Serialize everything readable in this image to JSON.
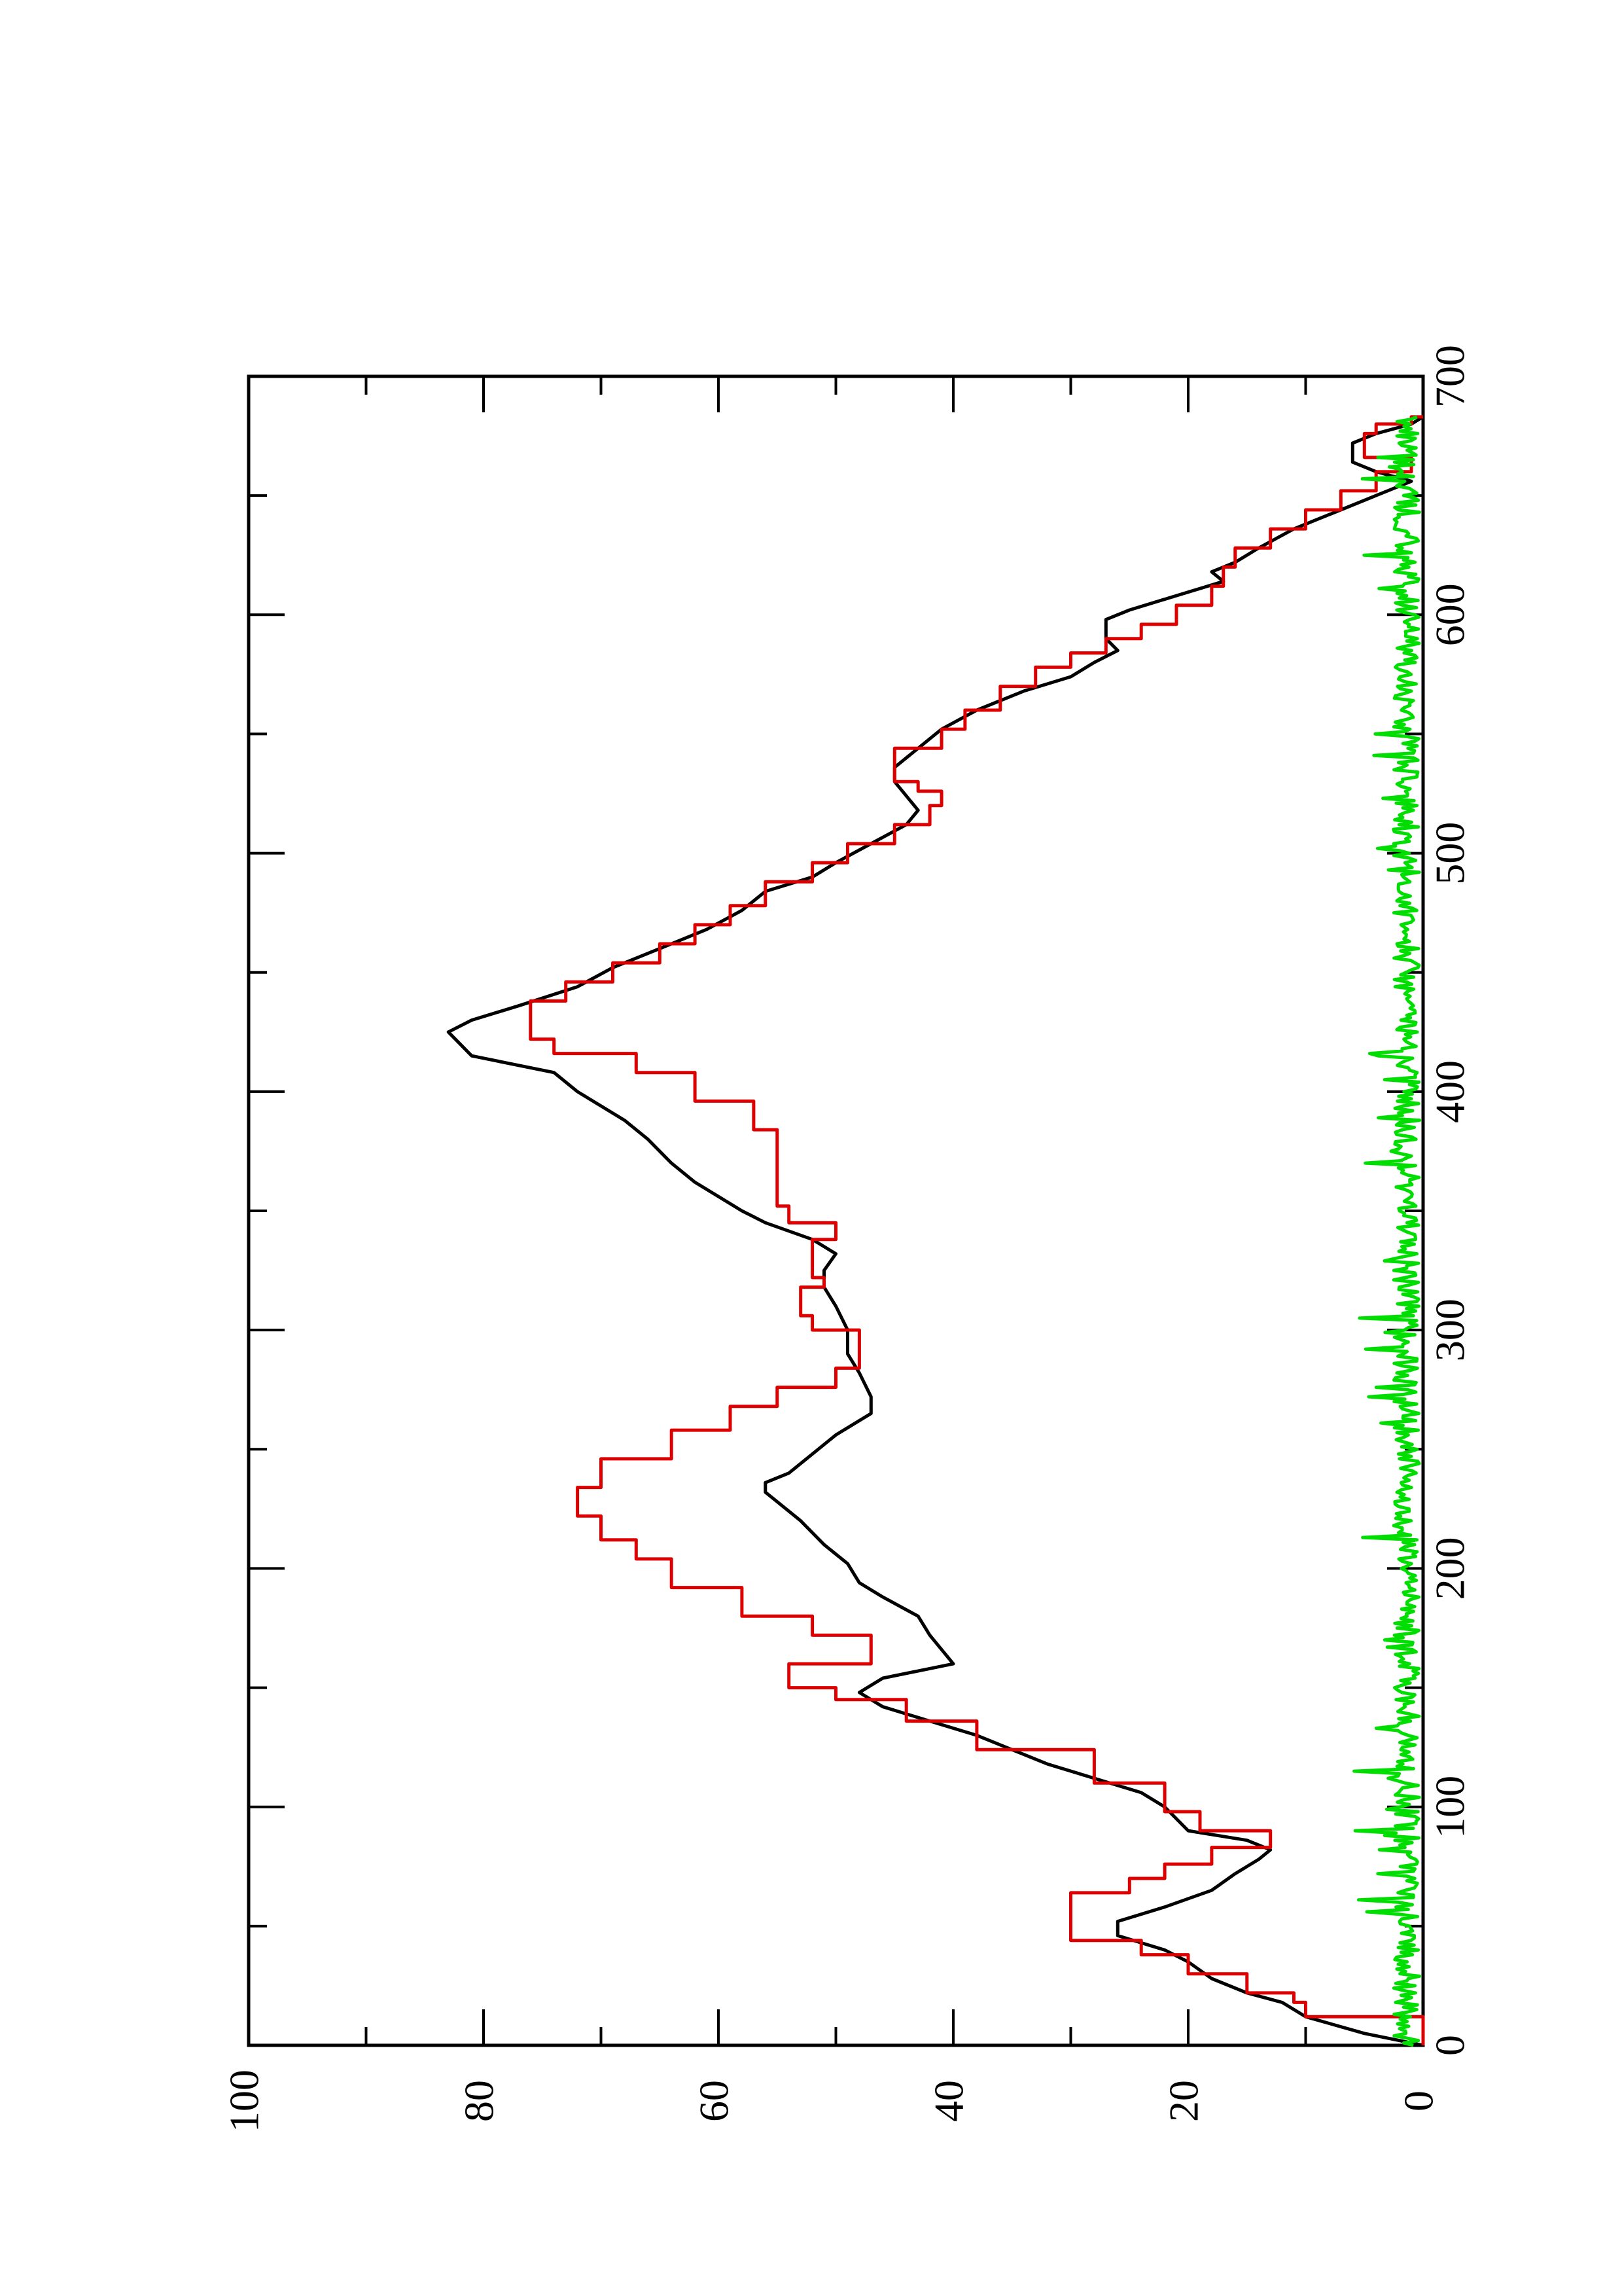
{
  "chart_data": {
    "type": "line",
    "orientation": "rotated-90-counterclockwise",
    "title": "",
    "xlabel": "",
    "ylabel": "",
    "xlim": [
      0,
      700
    ],
    "ylim": [
      0,
      100
    ],
    "x_ticks": [
      0,
      100,
      200,
      300,
      400,
      500,
      600,
      700
    ],
    "x_tick_labels": [
      "0",
      "100",
      "200",
      "300",
      "400",
      "500",
      "600",
      "700"
    ],
    "x_minor_ticks": [
      50,
      150,
      250,
      350,
      450,
      550,
      650
    ],
    "y_ticks": [
      0,
      20,
      40,
      60,
      80,
      100
    ],
    "y_tick_labels": [
      "0",
      "20",
      "40",
      "60",
      "80",
      "100"
    ],
    "y_minor_ticks": [
      10,
      30,
      50,
      70,
      90
    ],
    "grid": false,
    "legend": "none",
    "series": [
      {
        "color": "#000000",
        "style": "smooth",
        "points": [
          [
            0,
            0
          ],
          [
            5,
            5
          ],
          [
            12,
            10
          ],
          [
            18,
            12
          ],
          [
            22,
            15
          ],
          [
            28,
            18
          ],
          [
            35,
            20
          ],
          [
            40,
            22
          ],
          [
            46,
            26
          ],
          [
            52,
            26
          ],
          [
            58,
            22
          ],
          [
            65,
            18
          ],
          [
            72,
            16
          ],
          [
            78,
            14
          ],
          [
            82,
            13
          ],
          [
            86,
            15
          ],
          [
            90,
            20
          ],
          [
            95,
            21
          ],
          [
            100,
            22
          ],
          [
            106,
            24
          ],
          [
            112,
            28
          ],
          [
            118,
            32
          ],
          [
            124,
            35
          ],
          [
            130,
            38
          ],
          [
            136,
            42
          ],
          [
            142,
            46
          ],
          [
            148,
            48
          ],
          [
            154,
            46
          ],
          [
            160,
            40
          ],
          [
            166,
            41
          ],
          [
            172,
            42
          ],
          [
            180,
            43
          ],
          [
            188,
            46
          ],
          [
            194,
            48
          ],
          [
            202,
            49
          ],
          [
            210,
            51
          ],
          [
            220,
            53
          ],
          [
            228,
            55
          ],
          [
            232,
            56
          ],
          [
            236,
            56
          ],
          [
            240,
            54
          ],
          [
            248,
            52
          ],
          [
            256,
            50
          ],
          [
            265,
            47
          ],
          [
            272,
            47
          ],
          [
            282,
            48
          ],
          [
            290,
            49
          ],
          [
            300,
            49
          ],
          [
            310,
            50
          ],
          [
            318,
            51
          ],
          [
            325,
            51
          ],
          [
            332,
            50
          ],
          [
            338,
            52
          ],
          [
            345,
            56
          ],
          [
            350,
            58
          ],
          [
            356,
            60
          ],
          [
            362,
            62
          ],
          [
            370,
            64
          ],
          [
            380,
            66
          ],
          [
            388,
            68
          ],
          [
            394,
            70
          ],
          [
            400,
            72
          ],
          [
            408,
            74
          ],
          [
            415,
            81
          ],
          [
            420,
            82
          ],
          [
            425,
            83
          ],
          [
            430,
            81
          ],
          [
            436,
            77
          ],
          [
            444,
            72
          ],
          [
            452,
            69
          ],
          [
            460,
            65
          ],
          [
            468,
            61
          ],
          [
            476,
            58
          ],
          [
            484,
            56
          ],
          [
            490,
            52
          ],
          [
            496,
            50
          ],
          [
            504,
            47
          ],
          [
            512,
            44
          ],
          [
            518,
            43
          ],
          [
            524,
            44
          ],
          [
            530,
            45
          ],
          [
            536,
            45
          ],
          [
            544,
            43
          ],
          [
            552,
            41
          ],
          [
            560,
            38
          ],
          [
            568,
            34
          ],
          [
            574,
            30
          ],
          [
            580,
            28
          ],
          [
            585,
            26
          ],
          [
            590,
            27
          ],
          [
            598,
            27
          ],
          [
            602,
            25
          ],
          [
            608,
            21
          ],
          [
            614,
            17
          ],
          [
            618,
            18
          ],
          [
            622,
            16
          ],
          [
            628,
            14
          ],
          [
            636,
            11
          ],
          [
            644,
            7
          ],
          [
            650,
            4
          ],
          [
            656,
            1
          ],
          [
            660,
            4
          ],
          [
            664,
            6
          ],
          [
            668,
            6
          ],
          [
            672,
            6
          ],
          [
            676,
            4
          ],
          [
            680,
            1
          ],
          [
            683,
            0
          ]
        ]
      },
      {
        "color": "#dd0000",
        "style": "step",
        "points": [
          [
            0,
            0
          ],
          [
            12,
            10
          ],
          [
            18,
            11
          ],
          [
            22,
            15
          ],
          [
            30,
            20
          ],
          [
            38,
            24
          ],
          [
            44,
            30
          ],
          [
            56,
            30
          ],
          [
            64,
            25
          ],
          [
            70,
            22
          ],
          [
            76,
            18
          ],
          [
            83,
            13
          ],
          [
            90,
            19
          ],
          [
            98,
            22
          ],
          [
            110,
            28
          ],
          [
            124,
            38
          ],
          [
            136,
            44
          ],
          [
            145,
            50
          ],
          [
            150,
            54
          ],
          [
            160,
            47
          ],
          [
            172,
            52
          ],
          [
            180,
            58
          ],
          [
            192,
            64
          ],
          [
            204,
            67
          ],
          [
            212,
            70
          ],
          [
            222,
            72
          ],
          [
            234,
            70
          ],
          [
            246,
            64
          ],
          [
            258,
            59
          ],
          [
            268,
            55
          ],
          [
            276,
            50
          ],
          [
            284,
            48
          ],
          [
            292,
            48
          ],
          [
            300,
            52
          ],
          [
            306,
            53
          ],
          [
            312,
            53
          ],
          [
            318,
            51
          ],
          [
            322,
            52
          ],
          [
            330,
            52
          ],
          [
            338,
            50
          ],
          [
            345,
            54
          ],
          [
            352,
            55
          ],
          [
            362,
            55
          ],
          [
            375,
            55
          ],
          [
            384,
            57
          ],
          [
            396,
            62
          ],
          [
            408,
            67
          ],
          [
            416,
            74
          ],
          [
            422,
            76
          ],
          [
            430,
            76
          ],
          [
            438,
            73
          ],
          [
            446,
            69
          ],
          [
            454,
            65
          ],
          [
            462,
            62
          ],
          [
            470,
            59
          ],
          [
            478,
            56
          ],
          [
            488,
            52
          ],
          [
            496,
            49
          ],
          [
            504,
            45
          ],
          [
            512,
            42
          ],
          [
            520,
            41
          ],
          [
            526,
            43
          ],
          [
            530,
            45
          ],
          [
            536,
            45
          ],
          [
            544,
            41
          ],
          [
            552,
            39
          ],
          [
            560,
            36
          ],
          [
            570,
            33
          ],
          [
            578,
            30
          ],
          [
            584,
            27
          ],
          [
            590,
            24
          ],
          [
            596,
            21
          ],
          [
            604,
            18
          ],
          [
            612,
            17
          ],
          [
            620,
            16
          ],
          [
            628,
            13
          ],
          [
            636,
            10
          ],
          [
            644,
            7
          ],
          [
            652,
            4
          ],
          [
            660,
            1
          ],
          [
            666,
            5
          ],
          [
            670,
            5
          ],
          [
            676,
            4
          ],
          [
            680,
            1
          ],
          [
            683,
            0
          ]
        ]
      },
      {
        "color": "#00dd00",
        "style": "noise",
        "seed": 7,
        "x_start": 0,
        "x_end": 683,
        "x_step": 1,
        "baseline": 0.3,
        "amplitude": 2.2,
        "spike_probability": 0.06,
        "spike_amplitude": 3.5
      }
    ]
  }
}
